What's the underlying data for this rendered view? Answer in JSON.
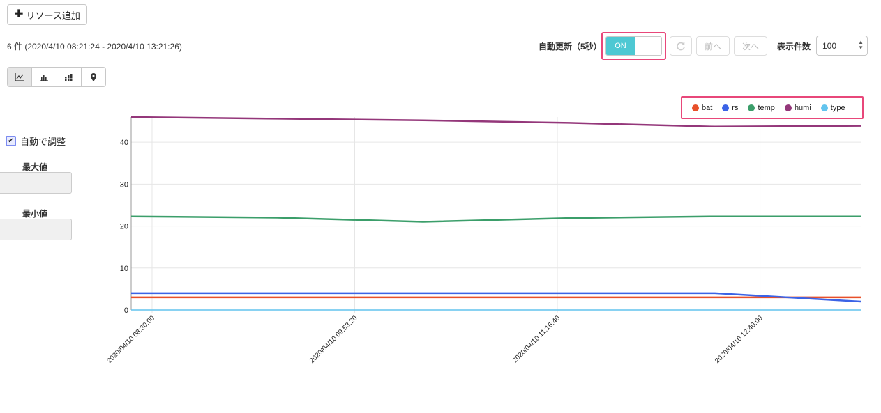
{
  "toolbar": {
    "add_resource_label": "リソース追加",
    "count_text": "6 件 (2020/4/10 08:21:24 - 2020/4/10 13:21:26)",
    "auto_refresh_label": "自動更新（5秒）",
    "toggle_state": "ON",
    "prev_label": "前へ",
    "next_label": "次へ",
    "rows_label": "表示件数",
    "rows_value": "100"
  },
  "view_buttons": [
    "line-chart-icon",
    "bar-chart-icon",
    "stacked-bar-icon",
    "map-pin-icon"
  ],
  "side": {
    "auto_adjust_label": "自動で調整",
    "auto_adjust_checked": true,
    "max_label": "最大値",
    "min_label": "最小値",
    "max_value": "",
    "min_value": ""
  },
  "colors": {
    "bat": "#e8502a",
    "rs": "#3b63e6",
    "temp": "#3b9e6a",
    "humi": "#94377a",
    "type": "#62c4ee",
    "highlight": "#e8477a",
    "toggle_on": "#4ec8d3"
  },
  "chart_data": {
    "type": "line",
    "ylim": [
      0,
      46
    ],
    "yticks": [
      0,
      10,
      20,
      30,
      40
    ],
    "xlim": [
      "2020/04/10 08:21:24",
      "2020/04/10 13:21:26"
    ],
    "xticks": [
      "2020/04/10 08:30:00",
      "2020/04/10 09:53:20",
      "2020/04/10 11:16:40",
      "2020/04/10 12:40:00"
    ],
    "x": [
      "2020/04/10 08:21:24",
      "2020/04/10 09:21:24",
      "2020/04/10 10:21:24",
      "2020/04/10 11:21:25",
      "2020/04/10 12:21:25",
      "2020/04/10 13:21:26"
    ],
    "series": [
      {
        "name": "bat",
        "values": [
          3,
          3,
          3,
          3,
          3,
          3
        ]
      },
      {
        "name": "rs",
        "values": [
          4,
          4,
          4,
          4,
          4,
          2
        ]
      },
      {
        "name": "temp",
        "values": [
          22.3,
          22.0,
          21.0,
          21.9,
          22.3,
          22.3
        ]
      },
      {
        "name": "humi",
        "values": [
          46,
          45.6,
          45.2,
          44.6,
          43.7,
          43.9
        ]
      },
      {
        "name": "type",
        "values": [
          0,
          0,
          0,
          0,
          0,
          0
        ]
      }
    ],
    "legend": "top-right",
    "grid": true
  }
}
